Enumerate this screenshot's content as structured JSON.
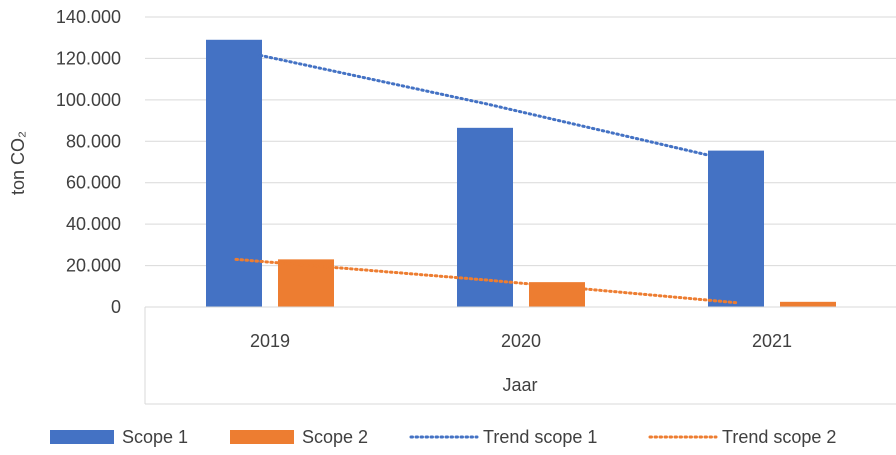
{
  "chart_data": {
    "type": "bar",
    "title": "",
    "categories": [
      "2019",
      "2020",
      "2021"
    ],
    "series": [
      {
        "name": "Scope 1",
        "kind": "bar",
        "color": "#4472c4",
        "values": [
          129000,
          86500,
          75500
        ]
      },
      {
        "name": "Scope 2",
        "kind": "bar",
        "color": "#ed7d31",
        "values": [
          23000,
          12000,
          2500
        ]
      }
    ],
    "trendlines": [
      {
        "name": "Trend scope 1",
        "style": "dotted",
        "color": "#4472c4",
        "values": [
          124000,
          98000,
          70000
        ]
      },
      {
        "name": "Trend scope 2",
        "style": "dotted",
        "color": "#ed7d31",
        "values": [
          23000,
          13000,
          2000
        ]
      }
    ],
    "xlabel": "Jaar",
    "ylabel": "ton CO₂",
    "ylim": [
      0,
      140000
    ],
    "yticks": [
      {
        "value": 0,
        "label": "0"
      },
      {
        "value": 20000,
        "label": "20.000"
      },
      {
        "value": 40000,
        "label": "40.000"
      },
      {
        "value": 60000,
        "label": "60.000"
      },
      {
        "value": 80000,
        "label": "80.000"
      },
      {
        "value": 100000,
        "label": "100.000"
      },
      {
        "value": 120000,
        "label": "120.000"
      },
      {
        "value": 140000,
        "label": "140.000"
      }
    ],
    "grid": true,
    "legend_position": "bottom"
  }
}
